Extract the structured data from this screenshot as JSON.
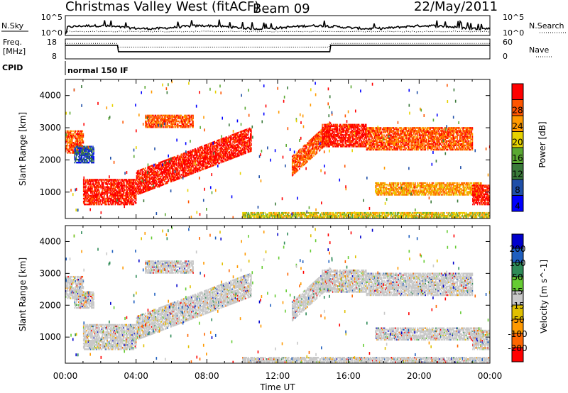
{
  "header": {
    "station": "Christmas Valley West (fitACF)",
    "beam": "Beam 09",
    "date": "22/May/2011"
  },
  "top_panels": {
    "nsky_label": "N.Sky",
    "nsearch_label": "N.Search",
    "nsky_ticks": [
      "10^5",
      "10^0"
    ],
    "nsearch_ticks": [
      "10^5",
      "10^0"
    ],
    "freq_label": "Freq.",
    "freq_unit": "[MHz]",
    "freq_ticks": [
      "18",
      "8"
    ],
    "nave_label": "Nave",
    "nave_ticks": [
      "60",
      "0"
    ],
    "cpid_label": "CPID",
    "cpid_value": "normal 150 IF"
  },
  "colors": {
    "power": [
      "#0000ff",
      "#1f4fa8",
      "#3a7a3a",
      "#5aa832",
      "#e6d200",
      "#ff9900",
      "#ff5500",
      "#ff0000"
    ],
    "velocity": [
      "#ff0000",
      "#ff6600",
      "#ff9900",
      "#e0c000",
      "#c8c8c8",
      "#66cc33",
      "#2e8b57",
      "#1f5fbf",
      "#0000cc"
    ],
    "velocity_gray": "#c8c8c8"
  },
  "chart_data": [
    {
      "type": "heatmap",
      "title": "",
      "xlabel": "",
      "ylabel": "Slant Range [km]",
      "x_ticks": [
        "00:00",
        "04:00",
        "08:00",
        "12:00",
        "16:00",
        "20:00",
        "00:00"
      ],
      "y_ticks": [
        1000,
        2000,
        3000,
        4000
      ],
      "xlim_hours": [
        0,
        24
      ],
      "ylim_km": [
        180,
        4500
      ],
      "colorbar": {
        "label": "Power [dB]",
        "ticks": [
          4,
          8,
          12,
          16,
          20,
          24,
          28
        ]
      },
      "bands": [
        {
          "t": [
            0.0,
            1.0
          ],
          "r": [
            2200,
            2900
          ],
          "level": 6
        },
        {
          "t": [
            0.5,
            1.6
          ],
          "r": [
            1900,
            2400
          ],
          "level": 1
        },
        {
          "t": [
            1.0,
            4.0
          ],
          "r": [
            600,
            1400
          ],
          "level": 7
        },
        {
          "t": [
            4.0,
            10.5
          ],
          "r": [
            900,
            3000
          ],
          "level": 7,
          "slope": true
        },
        {
          "t": [
            4.5,
            7.2
          ],
          "r": [
            3000,
            3400
          ],
          "level": 6
        },
        {
          "t": [
            12.8,
            15.0
          ],
          "r": [
            1500,
            3200
          ],
          "level": 6,
          "slope": true
        },
        {
          "t": [
            14.5,
            17.0
          ],
          "r": [
            2400,
            3100
          ],
          "level": 7
        },
        {
          "t": [
            17.0,
            23.0
          ],
          "r": [
            2300,
            3000
          ],
          "level": 6
        },
        {
          "t": [
            17.5,
            23.5
          ],
          "r": [
            900,
            1300
          ],
          "level": 5
        },
        {
          "t": [
            23.0,
            24.0
          ],
          "r": [
            600,
            1200
          ],
          "level": 7
        },
        {
          "t": [
            10.0,
            24.0
          ],
          "r": [
            200,
            350
          ],
          "level": 4
        }
      ]
    },
    {
      "type": "heatmap",
      "title": "",
      "xlabel": "Time UT",
      "ylabel": "Slant Range [km]",
      "x_ticks": [
        "00:00",
        "04:00",
        "08:00",
        "12:00",
        "16:00",
        "20:00",
        "00:00"
      ],
      "y_ticks": [
        1000,
        2000,
        3000,
        4000
      ],
      "xlim_hours": [
        0,
        24
      ],
      "ylim_km": [
        180,
        4500
      ],
      "colorbar": {
        "label": "Velocity [m s^-1]",
        "ticks": [
          200,
          100,
          50,
          15,
          -15,
          -50,
          -100,
          -200
        ]
      }
    }
  ]
}
